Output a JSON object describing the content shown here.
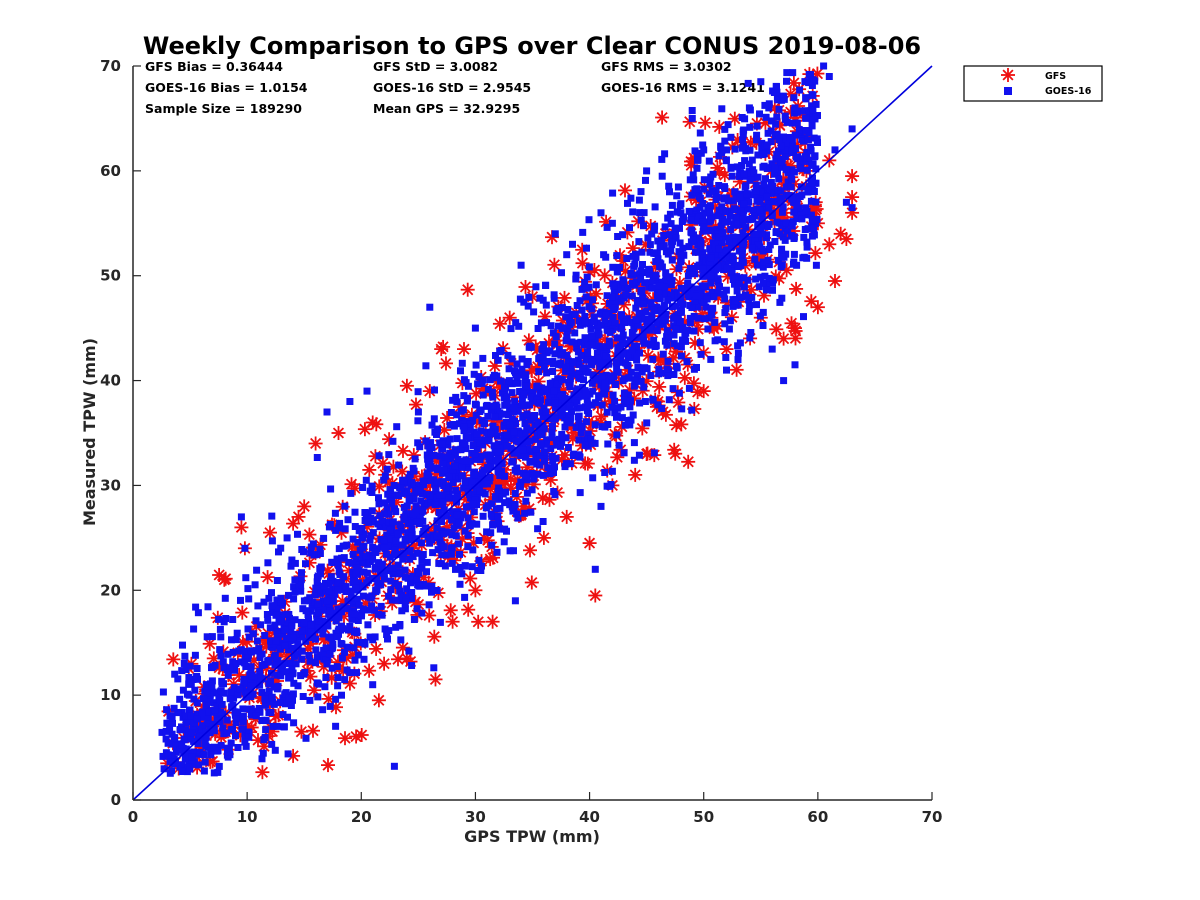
{
  "chart_data": {
    "type": "scatter",
    "title": "Weekly Comparison to GPS over Clear CONUS 2019-08-06",
    "xlabel": "GPS TPW (mm)",
    "ylabel": "Measured TPW (mm)",
    "xlim": [
      0,
      70
    ],
    "ylim": [
      0,
      70
    ],
    "xticks": [
      0,
      10,
      20,
      30,
      40,
      50,
      60,
      70
    ],
    "yticks": [
      0,
      10,
      20,
      30,
      40,
      50,
      60,
      70
    ],
    "grid": false,
    "legend_position": "outside-top-right",
    "reference_line": {
      "x": [
        0,
        70
      ],
      "y": [
        0,
        70
      ],
      "color": "#0000dd"
    },
    "stats": [
      [
        "GFS Bias = 0.36444",
        "GFS StD = 3.0082",
        "GFS RMS = 3.0302"
      ],
      [
        "GOES-16 Bias = 1.0154",
        "GOES-16 StD = 2.9545",
        "GOES-16 RMS = 3.1241"
      ],
      [
        "Sample Size = 189290",
        "Mean GPS = 32.9295",
        ""
      ]
    ],
    "series": [
      {
        "name": "GFS",
        "marker": "asterisk",
        "color": "#ee1111",
        "core": {
          "x_range": [
            3,
            60
          ],
          "slope": 1.0,
          "offset": 0.36,
          "spread": 3.0
        },
        "outliers": [
          [
            9.5,
            26
          ],
          [
            9.8,
            24
          ],
          [
            12,
            25.5
          ],
          [
            14.5,
            27
          ],
          [
            15,
            28
          ],
          [
            16,
            34
          ],
          [
            18,
            35
          ],
          [
            21,
            36
          ],
          [
            8,
            21
          ],
          [
            26.5,
            11.5
          ],
          [
            31.5,
            17
          ],
          [
            40.5,
            19.5
          ],
          [
            40,
            24.5
          ],
          [
            44,
            31
          ],
          [
            45,
            33
          ],
          [
            61.5,
            49.5
          ],
          [
            60,
            47
          ],
          [
            63,
            56
          ],
          [
            63,
            57.5
          ],
          [
            63,
            59.5
          ],
          [
            58,
            45
          ],
          [
            57,
            44
          ],
          [
            12.5,
            8
          ],
          [
            10,
            7
          ],
          [
            22,
            13
          ],
          [
            24,
            13.5
          ],
          [
            28,
            17
          ],
          [
            30,
            20
          ],
          [
            36,
            25
          ],
          [
            38,
            27
          ],
          [
            42,
            30
          ],
          [
            46,
            38
          ],
          [
            50,
            39
          ],
          [
            52,
            43
          ],
          [
            55,
            46
          ],
          [
            4,
            3
          ],
          [
            3,
            3.5
          ],
          [
            6,
            5
          ],
          [
            26,
            39
          ],
          [
            27,
            43
          ],
          [
            33,
            46
          ],
          [
            35,
            48
          ],
          [
            60,
            55
          ],
          [
            61,
            53
          ],
          [
            62,
            54
          ],
          [
            62.5,
            53.5
          ],
          [
            24,
            39.5
          ],
          [
            29,
            43
          ],
          [
            59,
            60
          ],
          [
            61,
            61
          ]
        ]
      },
      {
        "name": "GOES-16",
        "marker": "square",
        "color": "#1111ee",
        "core": {
          "x_range": [
            2.5,
            60
          ],
          "slope": 1.02,
          "offset": 1.0,
          "spread": 2.95
        },
        "outliers": [
          [
            9.5,
            27
          ],
          [
            9.8,
            24
          ],
          [
            20.5,
            39
          ],
          [
            26,
            47
          ],
          [
            30,
            45
          ],
          [
            38,
            52
          ],
          [
            38.5,
            53
          ],
          [
            42,
            55
          ],
          [
            48,
            56
          ],
          [
            47,
            58
          ],
          [
            50,
            62
          ],
          [
            52,
            62
          ],
          [
            55,
            68.5
          ],
          [
            57,
            67
          ],
          [
            60.5,
            70
          ],
          [
            61,
            69
          ],
          [
            63,
            64
          ],
          [
            63,
            56.5
          ],
          [
            40.5,
            22
          ],
          [
            41,
            28
          ],
          [
            33.5,
            19
          ],
          [
            21,
            11
          ],
          [
            15.5,
            9.5
          ],
          [
            44,
            40
          ],
          [
            52,
            41
          ],
          [
            53,
            42
          ],
          [
            56,
            43
          ],
          [
            57,
            40
          ],
          [
            58,
            41.5
          ],
          [
            13.5,
            25
          ],
          [
            17,
            37
          ],
          [
            19,
            38
          ],
          [
            25,
            37
          ],
          [
            34,
            51
          ],
          [
            37,
            54
          ],
          [
            41,
            56
          ],
          [
            45,
            60
          ],
          [
            49,
            65
          ],
          [
            54,
            66
          ],
          [
            58,
            66
          ],
          [
            59,
            65
          ],
          [
            62.5,
            57
          ],
          [
            61.5,
            62
          ]
        ]
      }
    ]
  }
}
